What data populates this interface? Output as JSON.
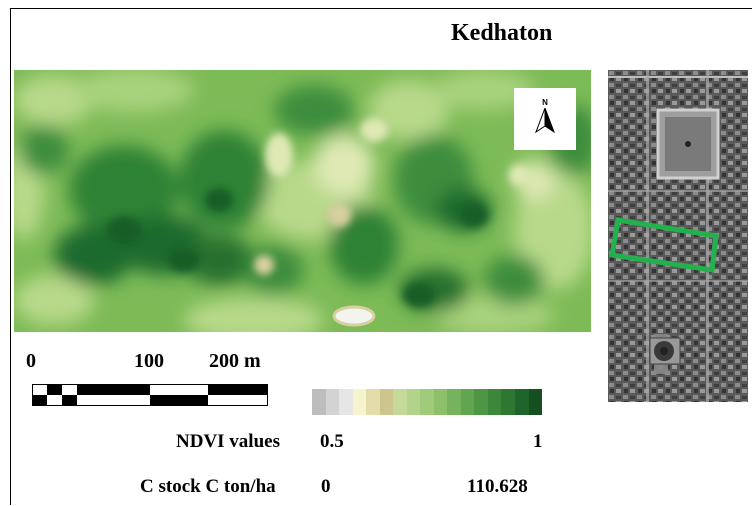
{
  "title": "Kedhaton",
  "north_arrow": {
    "icon": "north-arrow-icon",
    "label": "N"
  },
  "scale_bar": {
    "labels": [
      "0",
      "100",
      "200 m"
    ]
  },
  "legend": {
    "ndvi_label": "NDVI values",
    "ndvi_min": "0.5",
    "ndvi_max": "1",
    "carbon_label": "C stock C ton/ha",
    "carbon_min": "0",
    "carbon_max": "110.628",
    "colors": [
      "#bdbdbd",
      "#d3d3d3",
      "#e6e6e6",
      "#f6f3cf",
      "#e4dcaa",
      "#cdc58e",
      "#c5d99a",
      "#b3d38a",
      "#a0cb7a",
      "#8cc06a",
      "#77b35d",
      "#62a550",
      "#4e9645",
      "#3c873b",
      "#2d7733",
      "#1f652b",
      "#154f22"
    ]
  },
  "map_colors": {
    "base": "#7dbb57",
    "dark": "#1d6b2e",
    "medium_dark": "#3d8d3c",
    "light": "#b8d98a",
    "pale": "#dfe9b5",
    "bare": "#d8cfa0"
  },
  "locator_map": {
    "highlight_color": "#22b14c"
  }
}
